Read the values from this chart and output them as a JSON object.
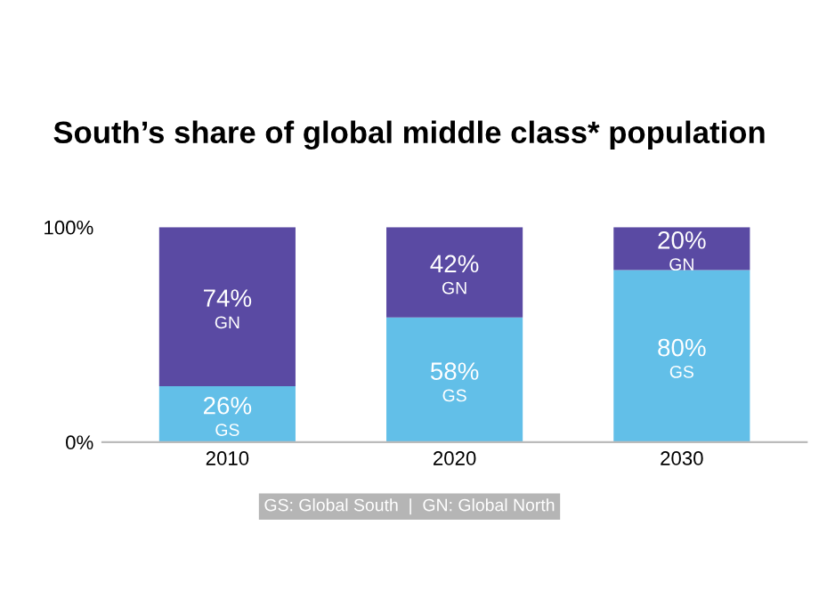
{
  "chart_data": {
    "type": "bar",
    "stacked": true,
    "title": "South’s share of global middle class* population",
    "categories": [
      "2010",
      "2020",
      "2030"
    ],
    "series": [
      {
        "name": "GS",
        "color": "#62bfe8",
        "values": [
          26,
          58,
          80
        ],
        "value_labels": [
          "26%",
          "58%",
          "80%"
        ]
      },
      {
        "name": "GN",
        "color": "#5a4aa3",
        "values": [
          74,
          42,
          20
        ],
        "value_labels": [
          "74%",
          "42%",
          "20%"
        ]
      }
    ],
    "ylim": [
      0,
      100
    ],
    "yticks": [
      {
        "value": 0,
        "label": "0%"
      },
      {
        "value": 100,
        "label": "100%"
      }
    ],
    "grid": false,
    "legend": false,
    "annotations": [
      "GS: Global South  |  GN: Global North"
    ]
  }
}
